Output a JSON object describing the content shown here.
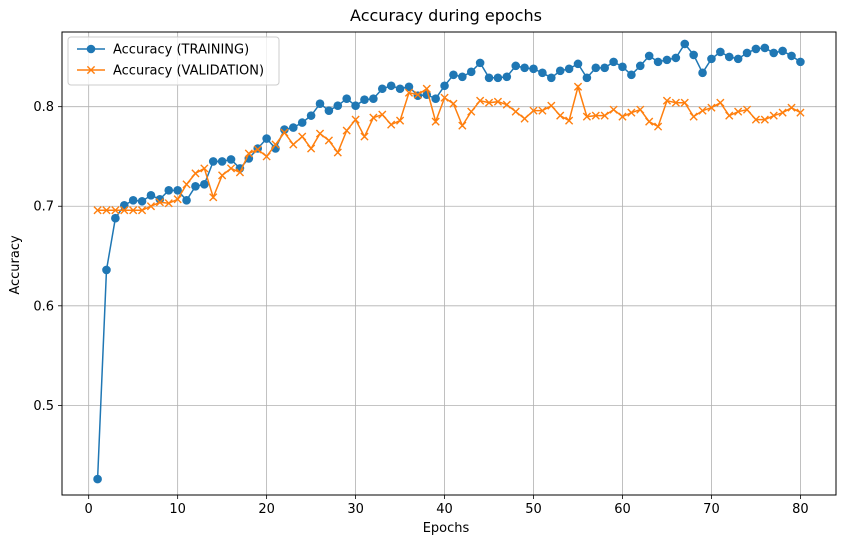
{
  "chart_data": {
    "type": "line",
    "title": "Accuracy during epochs",
    "xlabel": "Epochs",
    "ylabel": "Accuracy",
    "xlim": [
      -3,
      84
    ],
    "ylim": [
      0.41,
      0.875
    ],
    "xticks": [
      0,
      10,
      20,
      30,
      40,
      50,
      60,
      70,
      80
    ],
    "yticks": [
      0.5,
      0.6,
      0.7,
      0.8
    ],
    "ytick_labels": [
      "0.5",
      "0.6",
      "0.7",
      "0.8"
    ],
    "grid": true,
    "legend_position": "top-left",
    "x": [
      1,
      2,
      3,
      4,
      5,
      6,
      7,
      8,
      9,
      10,
      11,
      12,
      13,
      14,
      15,
      16,
      17,
      18,
      19,
      20,
      21,
      22,
      23,
      24,
      25,
      26,
      27,
      28,
      29,
      30,
      31,
      32,
      33,
      34,
      35,
      36,
      37,
      38,
      39,
      40,
      41,
      42,
      43,
      44,
      45,
      46,
      47,
      48,
      49,
      50,
      51,
      52,
      53,
      54,
      55,
      56,
      57,
      58,
      59,
      60,
      61,
      62,
      63,
      64,
      65,
      66,
      67,
      68,
      69,
      70,
      71,
      72,
      73,
      74,
      75,
      76,
      77,
      78,
      79,
      80
    ],
    "series": [
      {
        "name": "Accuracy (TRAINING)",
        "color": "#1f77b4",
        "marker": "circle",
        "values": [
          0.426,
          0.636,
          0.688,
          0.701,
          0.706,
          0.705,
          0.711,
          0.707,
          0.716,
          0.716,
          0.706,
          0.72,
          0.722,
          0.745,
          0.745,
          0.747,
          0.738,
          0.748,
          0.758,
          0.768,
          0.758,
          0.777,
          0.779,
          0.784,
          0.791,
          0.803,
          0.796,
          0.801,
          0.808,
          0.801,
          0.807,
          0.808,
          0.818,
          0.821,
          0.818,
          0.82,
          0.811,
          0.812,
          0.808,
          0.821,
          0.832,
          0.83,
          0.835,
          0.844,
          0.829,
          0.829,
          0.83,
          0.841,
          0.839,
          0.838,
          0.834,
          0.829,
          0.836,
          0.838,
          0.843,
          0.829,
          0.839,
          0.839,
          0.845,
          0.84,
          0.832,
          0.841,
          0.851,
          0.845,
          0.847,
          0.849,
          0.863,
          0.852,
          0.834,
          0.848,
          0.855,
          0.85,
          0.848,
          0.854,
          0.858,
          0.859,
          0.854,
          0.856,
          0.851,
          0.845
        ]
      },
      {
        "name": "Accuracy (VALIDATION)",
        "color": "#ff7f0e",
        "marker": "x",
        "values": [
          0.696,
          0.696,
          0.696,
          0.696,
          0.696,
          0.696,
          0.7,
          0.704,
          0.703,
          0.707,
          0.722,
          0.733,
          0.738,
          0.709,
          0.731,
          0.738,
          0.734,
          0.753,
          0.757,
          0.75,
          0.762,
          0.774,
          0.762,
          0.77,
          0.758,
          0.773,
          0.766,
          0.754,
          0.776,
          0.787,
          0.77,
          0.789,
          0.792,
          0.782,
          0.786,
          0.814,
          0.812,
          0.818,
          0.785,
          0.809,
          0.803,
          0.781,
          0.795,
          0.806,
          0.804,
          0.805,
          0.802,
          0.795,
          0.788,
          0.796,
          0.796,
          0.801,
          0.791,
          0.786,
          0.82,
          0.79,
          0.791,
          0.791,
          0.797,
          0.79,
          0.794,
          0.797,
          0.785,
          0.78,
          0.806,
          0.804,
          0.804,
          0.79,
          0.796,
          0.799,
          0.804,
          0.791,
          0.795,
          0.797,
          0.787,
          0.787,
          0.791,
          0.794,
          0.799,
          0.794
        ]
      }
    ]
  }
}
